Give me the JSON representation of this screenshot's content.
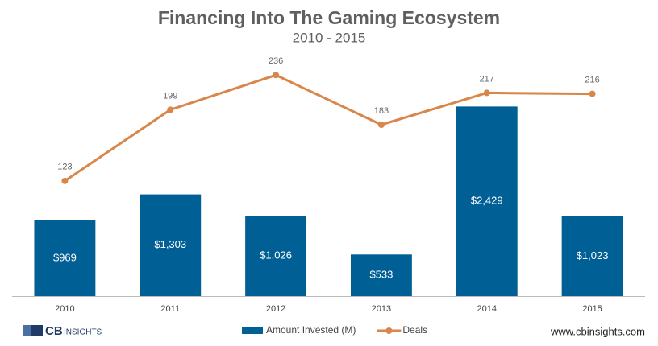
{
  "chart_data": {
    "type": "combo",
    "title": "Financing Into The Gaming Ecosystem",
    "subtitle": "2010 - 2015",
    "categories": [
      "2010",
      "2011",
      "2012",
      "2013",
      "2014",
      "2015"
    ],
    "series": [
      {
        "name": "Amount Invested (M)",
        "type": "bar",
        "color": "#005f94",
        "values": [
          969,
          1303,
          1026,
          533,
          2429,
          1023
        ],
        "value_labels": [
          "$969",
          "$1,303",
          "$1,026",
          "$533",
          "$2,429",
          "$1,023"
        ]
      },
      {
        "name": "Deals",
        "type": "line",
        "axis": "y2",
        "color": "#d9864a",
        "values": [
          123,
          199,
          236,
          183,
          217,
          216
        ]
      }
    ],
    "ylim": [
      0,
      3000
    ],
    "y2lim": [
      0,
      250
    ],
    "legend": "bottom"
  },
  "footer": {
    "brand": "CB",
    "brand_sub": "INSIGHTS",
    "website": "www.cbinsights.com"
  }
}
